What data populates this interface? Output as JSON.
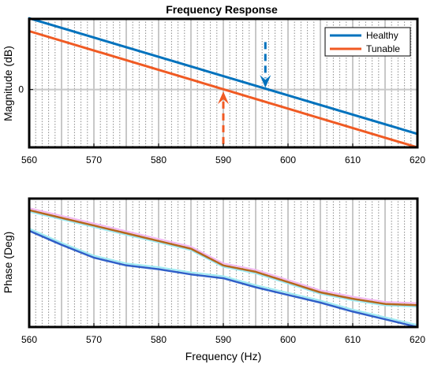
{
  "colors": {
    "healthy": "#0072BD",
    "tunable": "#F05A23",
    "phase_main": "#2F5FC8",
    "phase_upper": "#B5651D",
    "phase_shadow_magenta": "#F2B6F0",
    "phase_shadow_cyan": "#9EEAF2",
    "grid_major": "#C8C8C8",
    "grid_minor": "#8A8A8A"
  },
  "chart_data": [
    {
      "type": "line",
      "title": "Frequency Response",
      "xlabel": "",
      "ylabel": "Magnitude (dB)",
      "xlim": [
        560,
        620
      ],
      "ylim": [
        -9,
        11
      ],
      "xticks": [
        "560",
        "570",
        "580",
        "590",
        "600",
        "610",
        "620"
      ],
      "yticks": [
        "0"
      ],
      "grid": true,
      "legend": "top-right",
      "series": [
        {
          "name": "Healthy",
          "color_key": "healthy",
          "x": [
            560,
            620
          ],
          "y": [
            11.1,
            -6.9
          ]
        },
        {
          "name": "Tunable",
          "color_key": "tunable",
          "x": [
            560,
            620
          ],
          "y": [
            9.1,
            -9.0
          ]
        }
      ],
      "annotations": [
        {
          "type": "arrow-down",
          "x": 596.5,
          "y_from": 7.4,
          "y_to": 0.3,
          "dashed_tail": true,
          "color_key": "healthy"
        },
        {
          "type": "arrow-up",
          "x": 590,
          "y_from": -8.5,
          "y_to": -0.3,
          "dashed_tail": true,
          "color_key": "tunable"
        }
      ]
    },
    {
      "type": "line",
      "title": "",
      "xlabel": "Frequency (Hz)",
      "ylabel": "Phase (Deg)",
      "xlim": [
        560,
        620
      ],
      "ylim": [
        0,
        100
      ],
      "xticks": [
        "560",
        "570",
        "580",
        "590",
        "600",
        "610",
        "620"
      ],
      "yticks": [],
      "grid": true,
      "series": [
        {
          "color_key": "phase_upper",
          "shadows": [
            "phase_shadow_magenta",
            "phase_shadow_cyan"
          ],
          "x": [
            560,
            565,
            570,
            575,
            580,
            585,
            590,
            595,
            600,
            605,
            610,
            615,
            620
          ],
          "y": [
            91,
            85,
            79,
            73,
            67,
            61,
            48,
            43,
            35,
            27,
            22,
            18,
            17
          ]
        },
        {
          "color_key": "phase_main",
          "shadows": [
            "phase_shadow_cyan"
          ],
          "x": [
            560,
            565,
            570,
            575,
            580,
            585,
            590,
            595,
            600,
            605,
            610,
            615,
            620
          ],
          "y": [
            75,
            64,
            54,
            48,
            45,
            41,
            38,
            31,
            25,
            19,
            12,
            6,
            0
          ]
        }
      ]
    }
  ]
}
